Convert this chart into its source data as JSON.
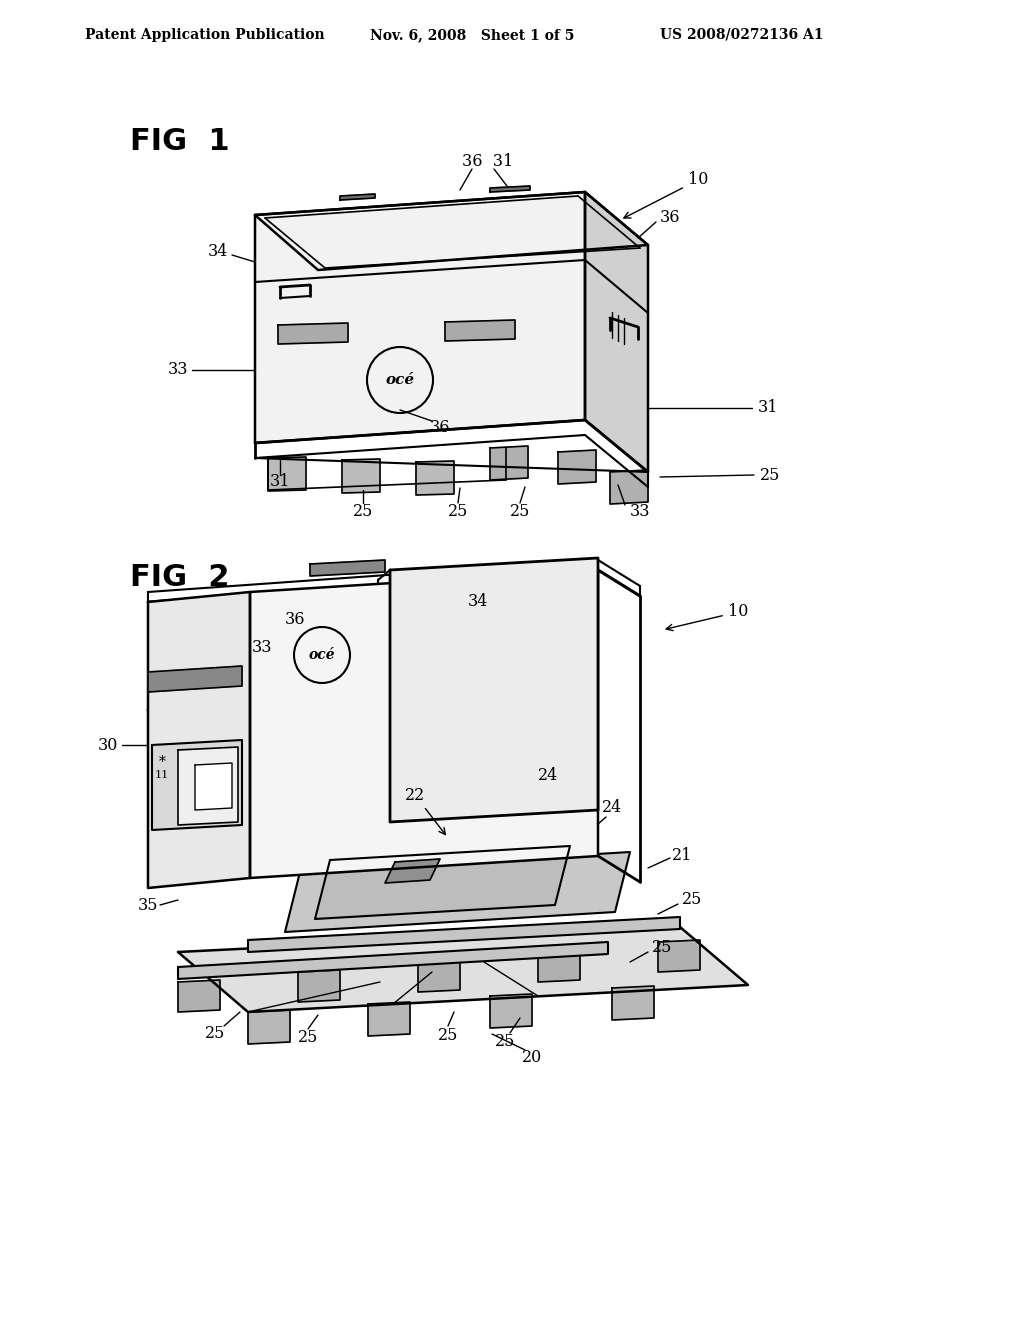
{
  "bg_color": "#ffffff",
  "line_color": "#000000",
  "header_text": "Patent Application Publication",
  "header_date": "Nov. 6, 2008   Sheet 1 of 5",
  "header_patent": "US 2008/0272136 A1",
  "fig1_label": "FIG  1",
  "fig2_label": "FIG  2"
}
